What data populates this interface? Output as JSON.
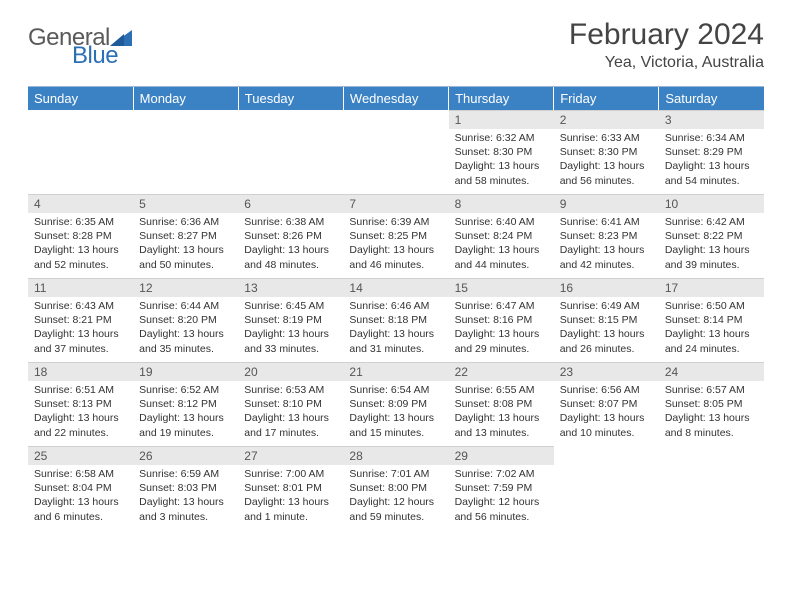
{
  "brand": {
    "general": "General",
    "blue": "Blue",
    "triangle_color": "#2d6fb5"
  },
  "header": {
    "month_title": "February 2024",
    "location": "Yea, Victoria, Australia"
  },
  "day_labels": [
    "Sunday",
    "Monday",
    "Tuesday",
    "Wednesday",
    "Thursday",
    "Friday",
    "Saturday"
  ],
  "colors": {
    "header_bg": "#3b82c4",
    "header_text": "#ffffff",
    "daybar_bg": "#e8e8e8",
    "rule": "#99b8d8"
  },
  "weeks": [
    [
      null,
      null,
      null,
      null,
      {
        "n": "1",
        "sunrise": "6:32 AM",
        "sunset": "8:30 PM",
        "daylight": "13 hours and 58 minutes."
      },
      {
        "n": "2",
        "sunrise": "6:33 AM",
        "sunset": "8:30 PM",
        "daylight": "13 hours and 56 minutes."
      },
      {
        "n": "3",
        "sunrise": "6:34 AM",
        "sunset": "8:29 PM",
        "daylight": "13 hours and 54 minutes."
      }
    ],
    [
      {
        "n": "4",
        "sunrise": "6:35 AM",
        "sunset": "8:28 PM",
        "daylight": "13 hours and 52 minutes."
      },
      {
        "n": "5",
        "sunrise": "6:36 AM",
        "sunset": "8:27 PM",
        "daylight": "13 hours and 50 minutes."
      },
      {
        "n": "6",
        "sunrise": "6:38 AM",
        "sunset": "8:26 PM",
        "daylight": "13 hours and 48 minutes."
      },
      {
        "n": "7",
        "sunrise": "6:39 AM",
        "sunset": "8:25 PM",
        "daylight": "13 hours and 46 minutes."
      },
      {
        "n": "8",
        "sunrise": "6:40 AM",
        "sunset": "8:24 PM",
        "daylight": "13 hours and 44 minutes."
      },
      {
        "n": "9",
        "sunrise": "6:41 AM",
        "sunset": "8:23 PM",
        "daylight": "13 hours and 42 minutes."
      },
      {
        "n": "10",
        "sunrise": "6:42 AM",
        "sunset": "8:22 PM",
        "daylight": "13 hours and 39 minutes."
      }
    ],
    [
      {
        "n": "11",
        "sunrise": "6:43 AM",
        "sunset": "8:21 PM",
        "daylight": "13 hours and 37 minutes."
      },
      {
        "n": "12",
        "sunrise": "6:44 AM",
        "sunset": "8:20 PM",
        "daylight": "13 hours and 35 minutes."
      },
      {
        "n": "13",
        "sunrise": "6:45 AM",
        "sunset": "8:19 PM",
        "daylight": "13 hours and 33 minutes."
      },
      {
        "n": "14",
        "sunrise": "6:46 AM",
        "sunset": "8:18 PM",
        "daylight": "13 hours and 31 minutes."
      },
      {
        "n": "15",
        "sunrise": "6:47 AM",
        "sunset": "8:16 PM",
        "daylight": "13 hours and 29 minutes."
      },
      {
        "n": "16",
        "sunrise": "6:49 AM",
        "sunset": "8:15 PM",
        "daylight": "13 hours and 26 minutes."
      },
      {
        "n": "17",
        "sunrise": "6:50 AM",
        "sunset": "8:14 PM",
        "daylight": "13 hours and 24 minutes."
      }
    ],
    [
      {
        "n": "18",
        "sunrise": "6:51 AM",
        "sunset": "8:13 PM",
        "daylight": "13 hours and 22 minutes."
      },
      {
        "n": "19",
        "sunrise": "6:52 AM",
        "sunset": "8:12 PM",
        "daylight": "13 hours and 19 minutes."
      },
      {
        "n": "20",
        "sunrise": "6:53 AM",
        "sunset": "8:10 PM",
        "daylight": "13 hours and 17 minutes."
      },
      {
        "n": "21",
        "sunrise": "6:54 AM",
        "sunset": "8:09 PM",
        "daylight": "13 hours and 15 minutes."
      },
      {
        "n": "22",
        "sunrise": "6:55 AM",
        "sunset": "8:08 PM",
        "daylight": "13 hours and 13 minutes."
      },
      {
        "n": "23",
        "sunrise": "6:56 AM",
        "sunset": "8:07 PM",
        "daylight": "13 hours and 10 minutes."
      },
      {
        "n": "24",
        "sunrise": "6:57 AM",
        "sunset": "8:05 PM",
        "daylight": "13 hours and 8 minutes."
      }
    ],
    [
      {
        "n": "25",
        "sunrise": "6:58 AM",
        "sunset": "8:04 PM",
        "daylight": "13 hours and 6 minutes."
      },
      {
        "n": "26",
        "sunrise": "6:59 AM",
        "sunset": "8:03 PM",
        "daylight": "13 hours and 3 minutes."
      },
      {
        "n": "27",
        "sunrise": "7:00 AM",
        "sunset": "8:01 PM",
        "daylight": "13 hours and 1 minute."
      },
      {
        "n": "28",
        "sunrise": "7:01 AM",
        "sunset": "8:00 PM",
        "daylight": "12 hours and 59 minutes."
      },
      {
        "n": "29",
        "sunrise": "7:02 AM",
        "sunset": "7:59 PM",
        "daylight": "12 hours and 56 minutes."
      },
      null,
      null
    ]
  ],
  "labels": {
    "sunrise": "Sunrise:",
    "sunset": "Sunset:",
    "daylight": "Daylight:"
  }
}
